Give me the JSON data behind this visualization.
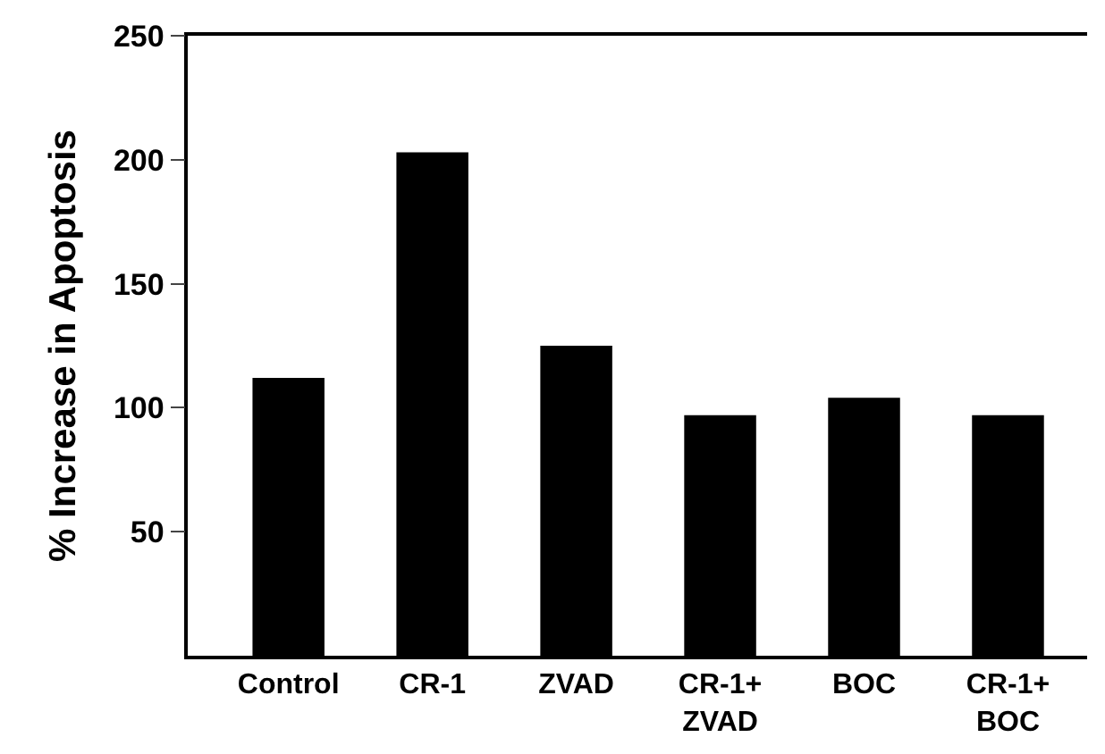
{
  "chart_data": {
    "type": "bar",
    "ylabel": "% Increase in Apoptosis",
    "categories": [
      "Control",
      "CR-1",
      "ZVAD",
      "CR-1+\nZVAD",
      "BOC",
      "CR-1+\nBOC"
    ],
    "values": [
      112,
      203,
      125,
      97,
      104,
      97
    ],
    "color": "#000000",
    "ylim": [
      0,
      250
    ],
    "yticks": [
      50,
      100,
      150,
      200,
      250
    ]
  }
}
